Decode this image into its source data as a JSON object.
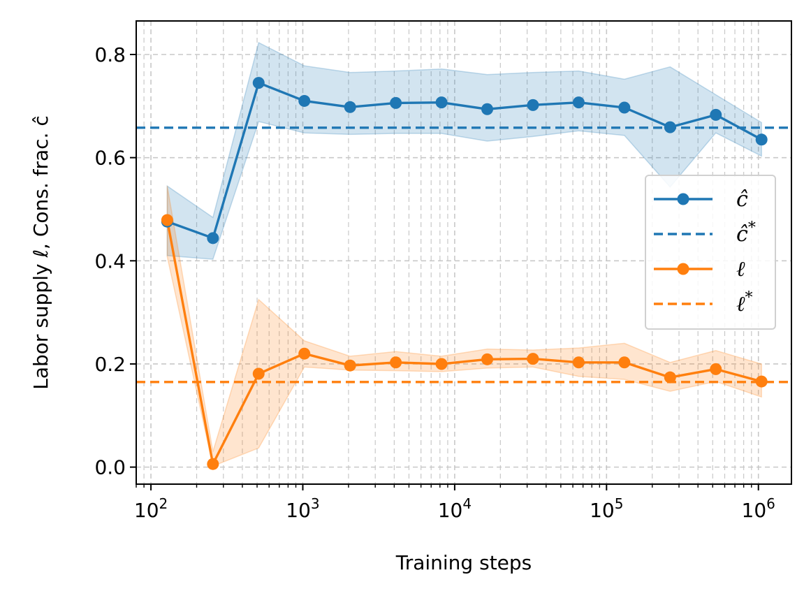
{
  "chart_data": {
    "type": "line",
    "xscale": "log",
    "xlabel": "Training steps",
    "ylabel": "Labor supply ℓ, Cons. frac. ĉ",
    "xlim": [
      80,
      1650000
    ],
    "ylim": [
      -0.033,
      0.865
    ],
    "yticks": [
      0.0,
      0.2,
      0.4,
      0.6,
      0.8
    ],
    "ytick_labels": [
      "0.0",
      "0.2",
      "0.4",
      "0.6",
      "0.8"
    ],
    "xticks": [
      100,
      1000,
      10000,
      100000,
      1000000
    ],
    "xtick_base": "10",
    "xtick_exponents": [
      "2",
      "3",
      "4",
      "5",
      "6"
    ],
    "grid": true,
    "legend_position": "center-right",
    "series": [
      {
        "name": "ĉ",
        "legend_base": "ĉ",
        "legend_sup": "",
        "color": "#1f77b4",
        "style": "solid-marker",
        "x": [
          128,
          256,
          512,
          1024,
          2048,
          4096,
          8192,
          16384,
          32768,
          65536,
          131072,
          262144,
          524288,
          1048576
        ],
        "values": [
          0.476,
          0.444,
          0.745,
          0.71,
          0.698,
          0.706,
          0.707,
          0.694,
          0.702,
          0.707,
          0.697,
          0.659,
          0.683,
          0.635
        ],
        "upper": [
          0.545,
          0.484,
          0.823,
          0.778,
          0.765,
          0.768,
          0.772,
          0.761,
          0.765,
          0.768,
          0.752,
          0.776,
          0.722,
          0.668
        ],
        "lower": [
          0.41,
          0.403,
          0.67,
          0.648,
          0.645,
          0.647,
          0.647,
          0.632,
          0.641,
          0.652,
          0.643,
          0.543,
          0.648,
          0.603
        ]
      },
      {
        "name": "ĉ*",
        "legend_base": "ĉ",
        "legend_sup": "*",
        "color": "#1f77b4",
        "style": "dashed",
        "hline": 0.658
      },
      {
        "name": "ℓ",
        "legend_base": "ℓ",
        "legend_sup": "",
        "color": "#ff7f0e",
        "style": "solid-marker",
        "x": [
          128,
          256,
          512,
          1024,
          2048,
          4096,
          8192,
          16384,
          32768,
          65536,
          131072,
          262144,
          524288,
          1048576
        ],
        "values": [
          0.479,
          0.006,
          0.181,
          0.22,
          0.197,
          0.203,
          0.2,
          0.209,
          0.21,
          0.203,
          0.203,
          0.174,
          0.19,
          0.166
        ],
        "upper": [
          0.545,
          0.03,
          0.325,
          0.245,
          0.215,
          0.224,
          0.215,
          0.229,
          0.227,
          0.231,
          0.24,
          0.203,
          0.226,
          0.2
        ],
        "lower": [
          0.408,
          0.002,
          0.037,
          0.194,
          0.188,
          0.187,
          0.185,
          0.192,
          0.194,
          0.176,
          0.17,
          0.147,
          0.166,
          0.136
        ]
      },
      {
        "name": "ℓ*",
        "legend_base": "ℓ",
        "legend_sup": "*",
        "color": "#ff7f0e",
        "style": "dashed",
        "hline": 0.165
      }
    ]
  }
}
